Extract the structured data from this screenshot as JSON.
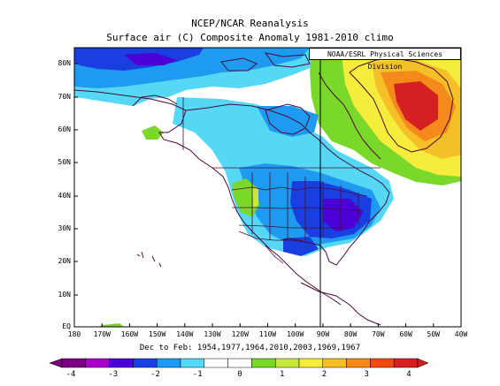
{
  "title_line1": "NCEP/NCAR Reanalysis",
  "title_line2": "Surface air (C) Composite Anomaly 1981-2010 climo",
  "credit": "NOAA/ESRL Physical Sciences Division",
  "subtitle": "Dec to Feb: 1954,1977,1964,2010,2003,1969,1967",
  "map": {
    "lat_labels": [
      "80N",
      "70N",
      "60N",
      "50N",
      "40N",
      "30N",
      "20N",
      "10N",
      "EQ"
    ],
    "lon_labels": [
      "180",
      "170W",
      "160W",
      "150W",
      "140W",
      "130W",
      "120W",
      "110W",
      "100W",
      "90W",
      "80W",
      "70W",
      "60W",
      "50W",
      "40W"
    ],
    "background": "#ffffff",
    "coast_color": "#4a0a3a"
  },
  "colorbar": {
    "labels": [
      "-4",
      "-3",
      "-2",
      "-1",
      "0",
      "1",
      "2",
      "3",
      "4"
    ],
    "colors": [
      "#7a0080",
      "#a800c8",
      "#4b00d8",
      "#1a3fe0",
      "#1e9af0",
      "#55d8f5",
      "#ffffff",
      "#ffffff",
      "#7ad82a",
      "#c8e840",
      "#f5ec3c",
      "#f5bf28",
      "#f58a1c",
      "#f04a14",
      "#d42020"
    ]
  }
}
